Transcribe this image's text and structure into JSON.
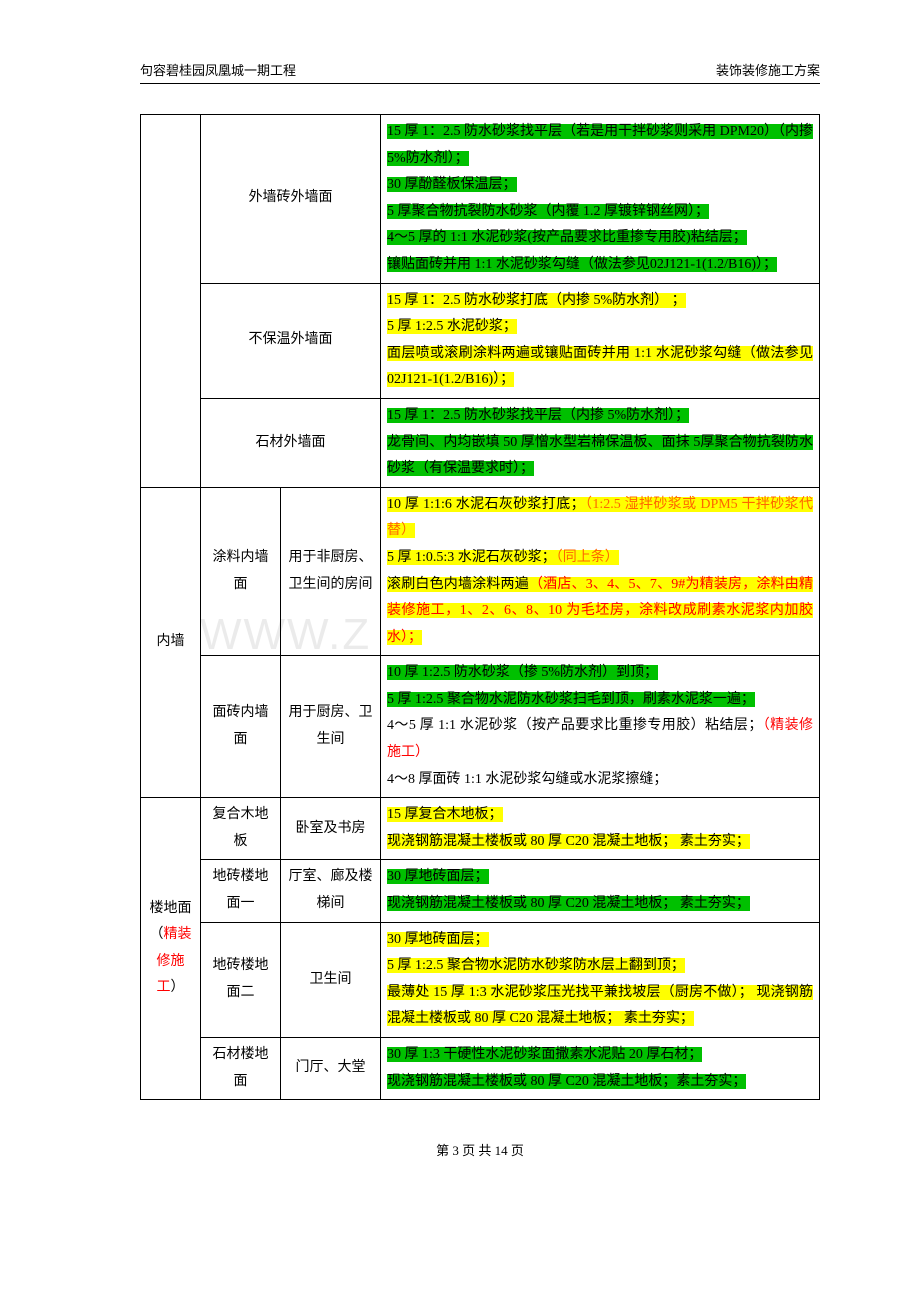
{
  "header": {
    "left": "句容碧桂园凤凰城一期工程",
    "right": "装饰装修施工方案"
  },
  "colors": {
    "green": "#00c000",
    "yellow": "#ffff00",
    "red": "#ff0000",
    "orange": "#ff6600"
  },
  "watermark": "WWW.Z",
  "rows": {
    "r1_c4": [
      {
        "t": "15 厚 1：2.5 防水砂浆找平层（若是用干拌砂浆则采用 DPM20）（内掺 5%防水剂）；",
        "c": "g"
      },
      {
        "t": "30 厚酚醛板保温层；",
        "c": "g"
      },
      {
        "t": "5 厚聚合物抗裂防水砂浆（内覆 1.2 厚镀锌钢丝网）；",
        "c": "g"
      },
      {
        "t": "4～5 厚的 1:1 水泥砂浆(按产品要求比重掺专用胶)粘结层；",
        "c": "g"
      },
      {
        "t": "镶贴面砖并用 1:1 水泥砂浆勾缝（做法参见02J121-1(1.2/B16)）；",
        "c": "g"
      }
    ],
    "r1_c23": "外墙砖外墙面",
    "r2_c23": "不保温外墙面",
    "r2_c4": [
      {
        "t": "15 厚 1：2.5 防水砂浆打底（内掺 5%防水剂） ；",
        "c": "y"
      },
      {
        "t": "5 厚 1:2.5 水泥砂浆；",
        "c": "y"
      },
      {
        "t": "面层喷或滚刷涂料两遍或镶贴面砖并用 1:1 水泥砂浆勾缝（做法参见 02J121-1(1.2/B16)）；",
        "c": "y"
      }
    ],
    "r3_c23": "石材外墙面",
    "r3_c4": [
      {
        "t": "15 厚 1：2.5 防水砂浆找平层（内掺 5%防水剂）；",
        "c": "g"
      },
      {
        "t": "龙骨间、内均嵌填 50 厚憎水型岩棉保温板、面抹 5厚聚合物抗裂防水砂浆（有保温要求时）；",
        "c": "g"
      }
    ],
    "r4_c1": "内墙",
    "r4_c2": "涂料内墙面",
    "r4_c3": "用于非厨房、卫生间的房间",
    "r4_c4_l1a": "10 厚 1:1:6 水泥石灰砂浆打底；",
    "r4_c4_l1b": "（1:2.5 湿拌砂浆或 DPM5 干拌砂浆代替）",
    "r4_c4_l2a": "5 厚 1:0.5:3 水泥石灰砂浆；",
    "r4_c4_l2b": "（同上条）",
    "r4_c4_l3a": "滚刷白色内墙涂料两遍",
    "r4_c4_l3b": "（酒店、3、4、5、7、9#为精装房，涂料由精装修施工，1、2、6、8、10 为毛坯房，涂料改成刷素水泥浆内加胶水）；",
    "r5_c2": "面砖内墙面",
    "r5_c3": "用于厨房、卫生间",
    "r5_c4_l1": "10 厚 1:2.5 防水砂浆（掺 5%防水剂）到顶；",
    "r5_c4_l2": "5 厚 1:2.5 聚合物水泥防水砂浆扫毛到顶，刷素水泥浆一遍；",
    "r5_c4_l3a": "4～5 厚 1:1 水泥砂浆（按产品要求比重掺专用胶）粘结层；",
    "r5_c4_l3b": "（精装修施工）",
    "r5_c4_l4": "4～8 厚面砖 1:1 水泥砂浆勾缝或水泥浆擦缝；",
    "r6_c1a": "楼地面（",
    "r6_c1b": "精装修施工",
    "r6_c1c": "）",
    "r6_c2": "复合木地板",
    "r6_c3": "卧室及书房",
    "r6_c4_l1": "15 厚复合木地板；",
    "r6_c4_l2": "现浇钢筋混凝土楼板或 80 厚 C20 混凝土地板； 素土夯实；",
    "r7_c2": "地砖楼地面一",
    "r7_c3": "厅室、廊及楼梯间",
    "r7_c4_l1": "30 厚地砖面层；",
    "r7_c4_l2": "现浇钢筋混凝土楼板或 80 厚 C20 混凝土地板； 素土夯实；",
    "r8_c2": "地砖楼地面二",
    "r8_c3": "卫生间",
    "r8_c4_l1": "30 厚地砖面层；",
    "r8_c4_l2": "5 厚 1:2.5 聚合物水泥防水砂浆防水层上翻到顶；",
    "r8_c4_l3": "最薄处 15 厚 1:3 水泥砂浆压光找平兼找坡层（厨房不做）； 现浇钢筋混凝土楼板或 80 厚 C20 混凝土地板； 素土夯实；",
    "r9_c2": "石材楼地面",
    "r9_c3": "门厅、大堂",
    "r9_c4_l1": "30 厚 1:3 干硬性水泥砂浆面撒素水泥贴 20 厚石材；",
    "r9_c4_l2": "现浇钢筋混凝土楼板或 80 厚 C20 混凝土地板；素土夯实；"
  },
  "footer": "第 3 页 共 14 页"
}
